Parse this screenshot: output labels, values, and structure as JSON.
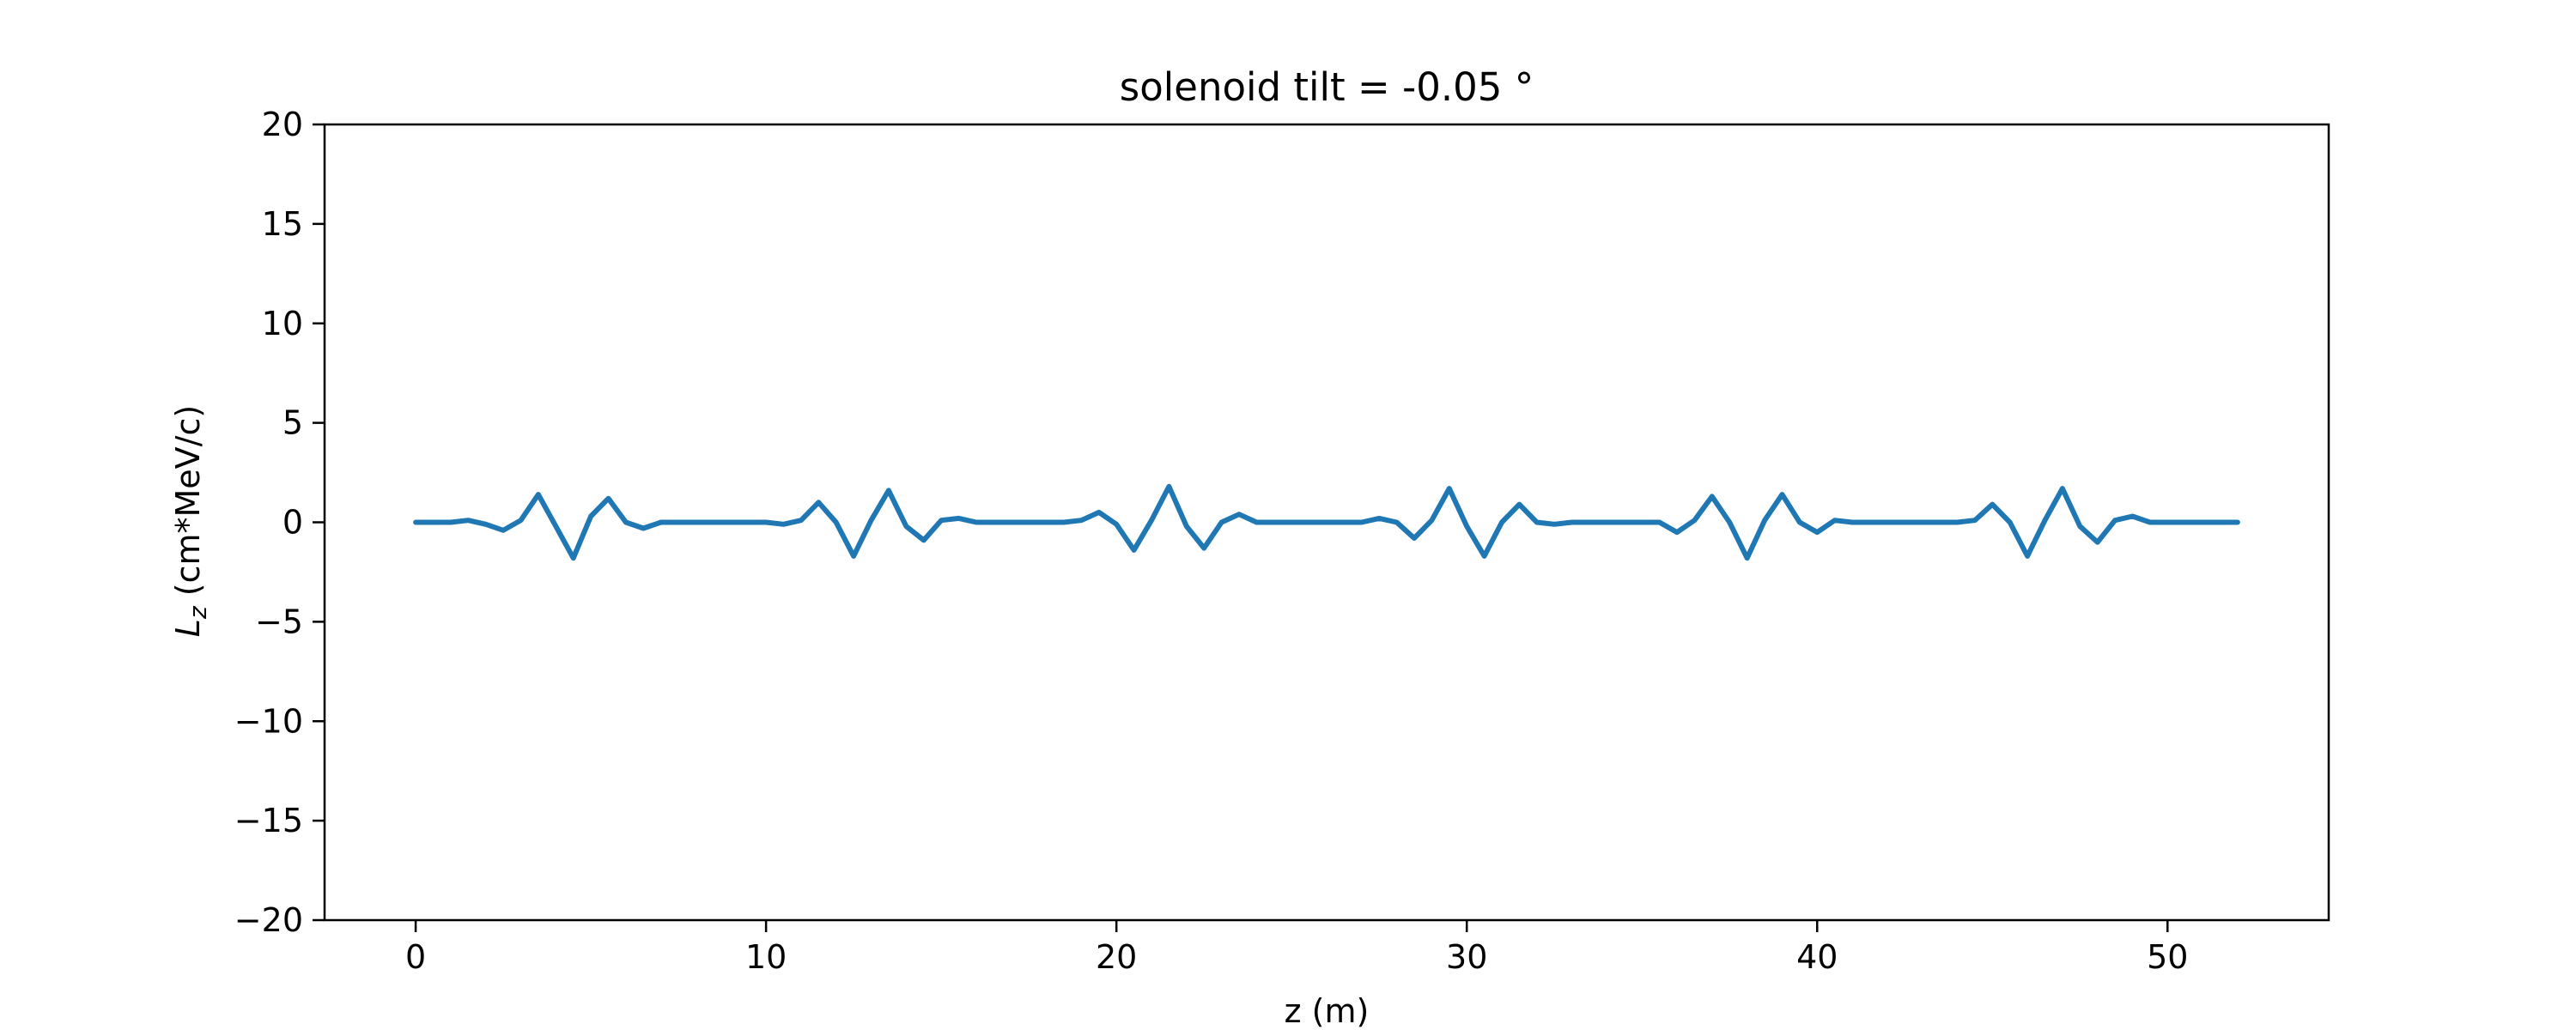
{
  "chart_data": {
    "type": "line",
    "title": "solenoid tilt = -0.05 °",
    "xlabel": "z (m)",
    "ylabel_symbol": "L",
    "ylabel_subscript": "z",
    "ylabel_units": "(cm*MeV/c)",
    "xlim": [
      -2.6,
      54.6
    ],
    "ylim": [
      -20,
      20
    ],
    "xticks": [
      0,
      10,
      20,
      30,
      40,
      50
    ],
    "xtick_labels": [
      "0",
      "10",
      "20",
      "30",
      "40",
      "50"
    ],
    "yticks": [
      -20,
      -15,
      -10,
      -5,
      0,
      5,
      10,
      15,
      20
    ],
    "ytick_labels": [
      "−20",
      "−15",
      "−10",
      "−5",
      "0",
      "5",
      "10",
      "15",
      "20"
    ],
    "grid": false,
    "legend": "none",
    "colors": {
      "series": "#1f77b4",
      "axes": "#000000",
      "background": "#ffffff"
    },
    "series": [
      {
        "x": [
          0,
          1.0,
          1.5,
          2.0,
          2.5,
          3.0,
          3.5,
          4.0,
          4.5,
          5.0,
          5.5,
          6.0,
          6.5,
          7.0,
          8,
          9,
          10,
          10.5,
          11.0,
          11.5,
          12.0,
          12.5,
          13.0,
          13.5,
          14.0,
          14.5,
          15.0,
          15.5,
          16.0,
          17,
          18,
          18.5,
          19.0,
          19.5,
          20.0,
          20.5,
          21.0,
          21.5,
          22.0,
          22.5,
          23.0,
          23.5,
          24.0,
          25,
          26,
          27,
          27.5,
          28.0,
          28.5,
          29.0,
          29.5,
          30.0,
          30.5,
          31.0,
          31.5,
          32.0,
          32.5,
          33,
          34,
          35,
          35.5,
          36.0,
          36.5,
          37.0,
          37.5,
          38.0,
          38.5,
          39.0,
          39.5,
          40.0,
          40.5,
          41.0,
          42,
          43,
          44,
          44.5,
          45.0,
          45.5,
          46.0,
          46.5,
          47.0,
          47.5,
          48.0,
          48.5,
          49.0,
          49.5,
          50.0,
          51,
          52
        ],
        "y": [
          0,
          0,
          0.1,
          -0.1,
          -0.4,
          0.1,
          1.4,
          -0.2,
          -1.8,
          0.3,
          1.2,
          0.0,
          -0.3,
          0.0,
          0,
          0,
          0,
          -0.1,
          0.1,
          1.0,
          0.0,
          -1.7,
          0.1,
          1.6,
          -0.2,
          -0.9,
          0.1,
          0.2,
          0,
          0,
          0,
          0,
          0.1,
          0.5,
          -0.1,
          -1.4,
          0.1,
          1.8,
          -0.2,
          -1.3,
          0.0,
          0.4,
          0.0,
          0,
          0,
          0,
          0.2,
          0.0,
          -0.8,
          0.1,
          1.7,
          -0.2,
          -1.7,
          0.0,
          0.9,
          0.0,
          -0.1,
          0,
          0,
          0,
          0.0,
          -0.5,
          0.1,
          1.3,
          0.0,
          -1.8,
          0.1,
          1.4,
          0.0,
          -0.5,
          0.1,
          0.0,
          0,
          0,
          0,
          0.1,
          0.9,
          0.0,
          -1.7,
          0.1,
          1.7,
          -0.2,
          -1.0,
          0.1,
          0.3,
          0.0,
          0,
          0,
          0
        ]
      }
    ]
  }
}
